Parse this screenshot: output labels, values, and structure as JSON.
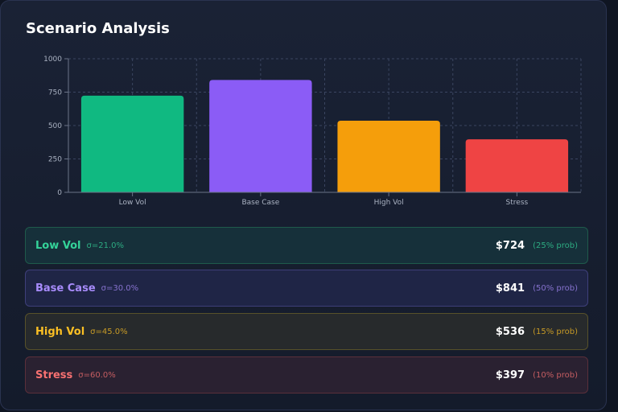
{
  "title": "Scenario Analysis",
  "chart_data": {
    "type": "bar",
    "categories": [
      "Low Vol",
      "Base Case",
      "High Vol",
      "Stress"
    ],
    "values": [
      724,
      841,
      536,
      397
    ],
    "ylim": [
      0,
      1000
    ],
    "yticks": [
      0,
      250,
      500,
      750,
      1000
    ],
    "colors": [
      "#10b981",
      "#8b5cf6",
      "#f59e0b",
      "#ef4444"
    ],
    "grid": true
  },
  "scenarios": [
    {
      "name": "Low Vol",
      "sigma": "σ=21.0%",
      "price": "$724",
      "prob": "(25% prob)",
      "color": "#34d399",
      "border": "#1f5a4b",
      "bg": "#16303a"
    },
    {
      "name": "Base Case",
      "sigma": "σ=30.0%",
      "price": "$841",
      "prob": "(50% prob)",
      "color": "#a78bfa",
      "border": "#3e3f7a",
      "bg": "#1f2546"
    },
    {
      "name": "High Vol",
      "sigma": "σ=45.0%",
      "price": "$536",
      "prob": "(15% prob)",
      "color": "#fbbf24",
      "border": "#57512a",
      "bg": "#272a2c"
    },
    {
      "name": "Stress",
      "sigma": "σ=60.0%",
      "price": "$397",
      "prob": "(10% prob)",
      "color": "#f87171",
      "border": "#5a2f3a",
      "bg": "#2a2131"
    }
  ]
}
